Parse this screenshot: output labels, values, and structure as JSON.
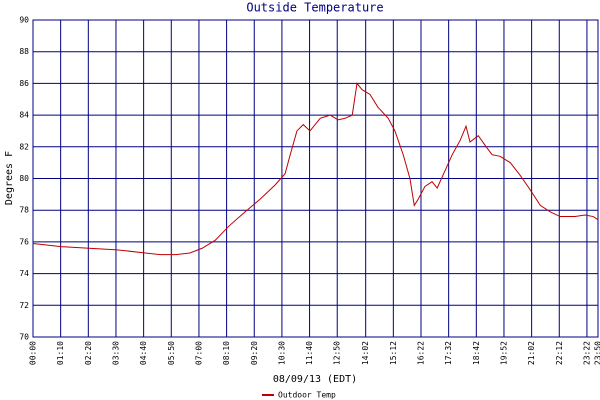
{
  "chart_data": {
    "type": "line",
    "title": "Outside Temperature",
    "y_label": "Degrees F",
    "x_label": "08/09/13 (EDT)",
    "x": [
      0,
      71,
      142,
      213,
      284,
      322,
      362,
      397,
      428,
      461,
      496,
      537,
      575,
      613,
      638,
      651,
      668,
      684,
      701,
      727,
      752,
      772,
      790,
      808,
      820,
      833,
      853,
      873,
      899,
      916,
      937,
      954,
      965,
      975,
      992,
      1010,
      1023,
      1043,
      1061,
      1081,
      1096,
      1106,
      1127,
      1147,
      1162,
      1182,
      1208,
      1233,
      1258,
      1284,
      1309,
      1334,
      1372,
      1397,
      1418,
      1430
    ],
    "series": [
      {
        "name": "Outdoor Temp",
        "color": "#c00000",
        "values": [
          75.9,
          75.7,
          75.6,
          75.5,
          75.3,
          75.2,
          75.2,
          75.3,
          75.6,
          76.1,
          77.0,
          77.9,
          78.7,
          79.6,
          80.3,
          81.5,
          83.0,
          83.4,
          83.0,
          83.8,
          84.0,
          83.7,
          83.8,
          84.0,
          86.0,
          85.6,
          85.3,
          84.5,
          83.8,
          83.0,
          81.5,
          80.0,
          78.3,
          78.7,
          79.5,
          79.8,
          79.4,
          80.5,
          81.5,
          82.4,
          83.3,
          82.3,
          82.7,
          82.0,
          81.5,
          81.4,
          81.0,
          80.2,
          79.3,
          78.3,
          77.9,
          77.6,
          77.6,
          77.7,
          77.6,
          77.4
        ]
      }
    ],
    "xlim": [
      0,
      1430
    ],
    "xticks": [
      {
        "value": 0,
        "label": "00:00"
      },
      {
        "value": 70,
        "label": "01:10"
      },
      {
        "value": 140,
        "label": "02:20"
      },
      {
        "value": 210,
        "label": "03:30"
      },
      {
        "value": 280,
        "label": "04:40"
      },
      {
        "value": 350,
        "label": "05:50"
      },
      {
        "value": 420,
        "label": "07:00"
      },
      {
        "value": 490,
        "label": "08:10"
      },
      {
        "value": 560,
        "label": "09:20"
      },
      {
        "value": 630,
        "label": "10:30"
      },
      {
        "value": 700,
        "label": "11:40"
      },
      {
        "value": 770,
        "label": "12:50"
      },
      {
        "value": 842,
        "label": "14:02"
      },
      {
        "value": 912,
        "label": "15:12"
      },
      {
        "value": 982,
        "label": "16:22"
      },
      {
        "value": 1052,
        "label": "17:32"
      },
      {
        "value": 1122,
        "label": "18:42"
      },
      {
        "value": 1192,
        "label": "19:52"
      },
      {
        "value": 1262,
        "label": "21:02"
      },
      {
        "value": 1332,
        "label": "22:12"
      },
      {
        "value": 1402,
        "label": "23:22"
      },
      {
        "value": 1430,
        "label": "23:50"
      }
    ],
    "ylim": [
      70,
      90
    ],
    "yticks": [
      70,
      72,
      74,
      76,
      78,
      80,
      82,
      84,
      86,
      88,
      90
    ],
    "grid": true,
    "grid_color": "#000080"
  }
}
